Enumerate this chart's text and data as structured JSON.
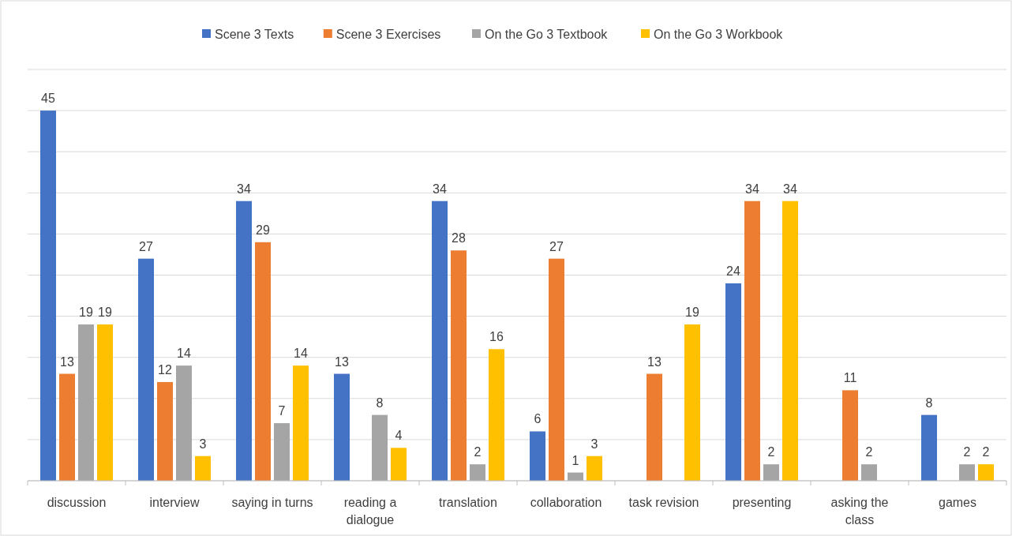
{
  "chart_data": {
    "type": "bar",
    "categories": [
      "discussion",
      "interview",
      "saying in turns",
      "reading a dialogue",
      "translation",
      "collaboration",
      "task revision",
      "presenting",
      "asking the class",
      "games"
    ],
    "series": [
      {
        "name": "Scene 3 Texts",
        "color": "#4472c4",
        "values": [
          45,
          27,
          34,
          13,
          34,
          6,
          null,
          24,
          null,
          8
        ]
      },
      {
        "name": "Scene 3 Exercises",
        "color": "#ed7d31",
        "values": [
          13,
          12,
          29,
          null,
          28,
          27,
          13,
          34,
          11,
          null
        ]
      },
      {
        "name": "On the Go 3 Textbook",
        "color": "#a5a5a5",
        "values": [
          19,
          14,
          7,
          8,
          2,
          1,
          null,
          2,
          2,
          2
        ]
      },
      {
        "name": "On the Go 3 Workbook",
        "color": "#ffc000",
        "values": [
          19,
          3,
          14,
          4,
          16,
          3,
          19,
          34,
          null,
          2
        ]
      }
    ],
    "ylim": [
      0,
      50
    ],
    "yticks": [
      {
        "value": 0,
        "label": null
      },
      {
        "value": 5,
        "label": null
      },
      {
        "value": 10,
        "label": null
      },
      {
        "value": 15,
        "label": null
      },
      {
        "value": 20,
        "label": null
      },
      {
        "value": 25,
        "label": null
      },
      {
        "value": 30,
        "label": null
      },
      {
        "value": 35,
        "label": null
      },
      {
        "value": 40,
        "label": null
      },
      {
        "value": 45,
        "label": null
      },
      {
        "value": 50,
        "label": null
      }
    ],
    "tick_labels": "x",
    "grid": "y",
    "legend": "top",
    "data_labels": true
  }
}
